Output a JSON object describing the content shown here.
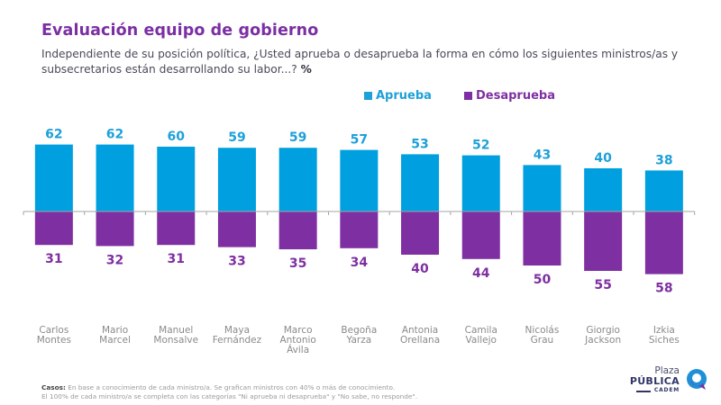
{
  "header": {
    "title": "Evaluación equipo de gobierno",
    "subtitle_line1": "Independiente de su posición política, ¿Usted aprueba o desaprueba la forma en cómo los siguientes ministros/as y",
    "subtitle_line2": "subsecretarios están desarrollando su labor...?",
    "subtitle_unit": "%"
  },
  "legend": {
    "approve": "Aprueba",
    "disapprove": "Desaprueba"
  },
  "colors": {
    "approve": "#009fdf",
    "disapprove": "#7e2fa1",
    "approve_label": "#1ea0d8",
    "disapprove_label": "#7e2fa1",
    "axis": "#a6a6a6",
    "category_label": "#8a8a8a"
  },
  "chart_data": {
    "type": "bar",
    "title": "Evaluación equipo de gobierno",
    "xlabel": "",
    "ylabel": "%",
    "categories": [
      "Carlos\nMontes",
      "Mario\nMarcel",
      "Manuel\nMonsalve",
      "Maya\nFernández",
      "Marco\nAntonio\nÁvila",
      "Begoña\nYarza",
      "Antonia\nOrellana",
      "Camila\nVallejo",
      "Nicolás\nGrau",
      "Giorgio\nJackson",
      "Izkia\nSiches"
    ],
    "series": [
      {
        "name": "Aprueba",
        "direction": "up",
        "values": [
          62,
          62,
          60,
          59,
          59,
          57,
          53,
          52,
          43,
          40,
          38
        ]
      },
      {
        "name": "Desaprueba",
        "direction": "down",
        "values": [
          31,
          32,
          31,
          33,
          35,
          34,
          40,
          44,
          50,
          55,
          58
        ]
      }
    ],
    "legend_position": "top-right",
    "grid": false,
    "diverging": true
  },
  "footnote": {
    "label": "Casos:",
    "line1": " En base a conocimiento de cada ministro/a. Se grafican ministros con 40% o más de conocimiento.",
    "line2": "El 100% de cada ministro/a se completa con las categorías \"Ni aprueba ni desaprueba\" y \"No sabe, no responde\"."
  },
  "logo": {
    "line1": "Plaza",
    "line2": "PÚBLICA",
    "line3": "CADEM"
  }
}
